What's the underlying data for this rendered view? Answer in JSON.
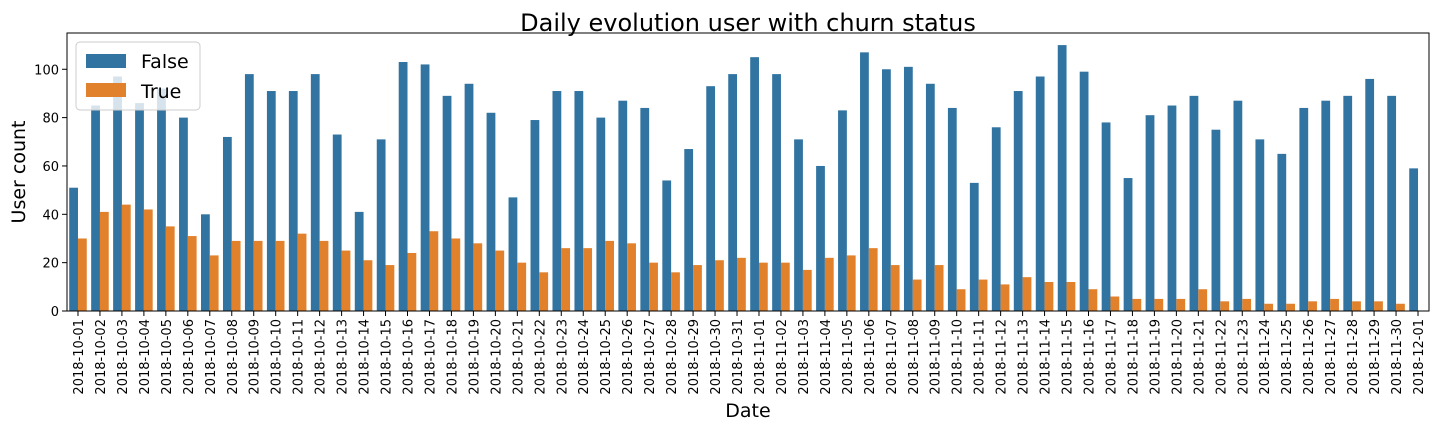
{
  "chart_data": {
    "type": "bar",
    "title": "Daily evolution user with churn status",
    "xlabel": "Date",
    "ylabel": "User count",
    "ylim": [
      0,
      115
    ],
    "yticks": [
      0,
      20,
      40,
      60,
      80,
      100
    ],
    "grid": false,
    "legend_position": "top-left",
    "categories": [
      "2018-10-01",
      "2018-10-02",
      "2018-10-03",
      "2018-10-04",
      "2018-10-05",
      "2018-10-06",
      "2018-10-07",
      "2018-10-08",
      "2018-10-09",
      "2018-10-10",
      "2018-10-11",
      "2018-10-12",
      "2018-10-13",
      "2018-10-14",
      "2018-10-15",
      "2018-10-16",
      "2018-10-17",
      "2018-10-18",
      "2018-10-19",
      "2018-10-20",
      "2018-10-21",
      "2018-10-22",
      "2018-10-23",
      "2018-10-24",
      "2018-10-25",
      "2018-10-26",
      "2018-10-27",
      "2018-10-28",
      "2018-10-29",
      "2018-10-30",
      "2018-10-31",
      "2018-11-01",
      "2018-11-02",
      "2018-11-03",
      "2018-11-04",
      "2018-11-05",
      "2018-11-06",
      "2018-11-07",
      "2018-11-08",
      "2018-11-09",
      "2018-11-10",
      "2018-11-11",
      "2018-11-12",
      "2018-11-13",
      "2018-11-14",
      "2018-11-15",
      "2018-11-16",
      "2018-11-17",
      "2018-11-18",
      "2018-11-19",
      "2018-11-20",
      "2018-11-21",
      "2018-11-22",
      "2018-11-23",
      "2018-11-24",
      "2018-11-25",
      "2018-11-26",
      "2018-11-27",
      "2018-11-28",
      "2018-11-29",
      "2018-11-30",
      "2018-12-01"
    ],
    "series": [
      {
        "name": "False",
        "color": "#3274a1",
        "values": [
          51,
          85,
          97,
          86,
          92,
          80,
          40,
          72,
          98,
          91,
          91,
          98,
          73,
          41,
          71,
          103,
          102,
          89,
          94,
          82,
          47,
          79,
          91,
          91,
          80,
          87,
          84,
          54,
          67,
          93,
          98,
          105,
          98,
          71,
          60,
          83,
          107,
          100,
          101,
          94,
          84,
          53,
          76,
          91,
          97,
          110,
          99,
          78,
          55,
          81,
          85,
          89,
          75,
          87,
          71,
          65,
          84,
          87,
          89,
          96,
          89,
          59
        ]
      },
      {
        "name": "True",
        "color": "#e1812c",
        "values": [
          30,
          41,
          44,
          42,
          35,
          31,
          23,
          29,
          29,
          29,
          32,
          29,
          25,
          21,
          19,
          24,
          33,
          30,
          28,
          25,
          20,
          16,
          26,
          26,
          29,
          28,
          20,
          16,
          19,
          21,
          22,
          20,
          20,
          17,
          22,
          23,
          26,
          19,
          13,
          19,
          9,
          13,
          11,
          14,
          12,
          12,
          9,
          6,
          5,
          5,
          5,
          9,
          4,
          5,
          3,
          3,
          4,
          5,
          4,
          4,
          3,
          null
        ]
      }
    ]
  }
}
